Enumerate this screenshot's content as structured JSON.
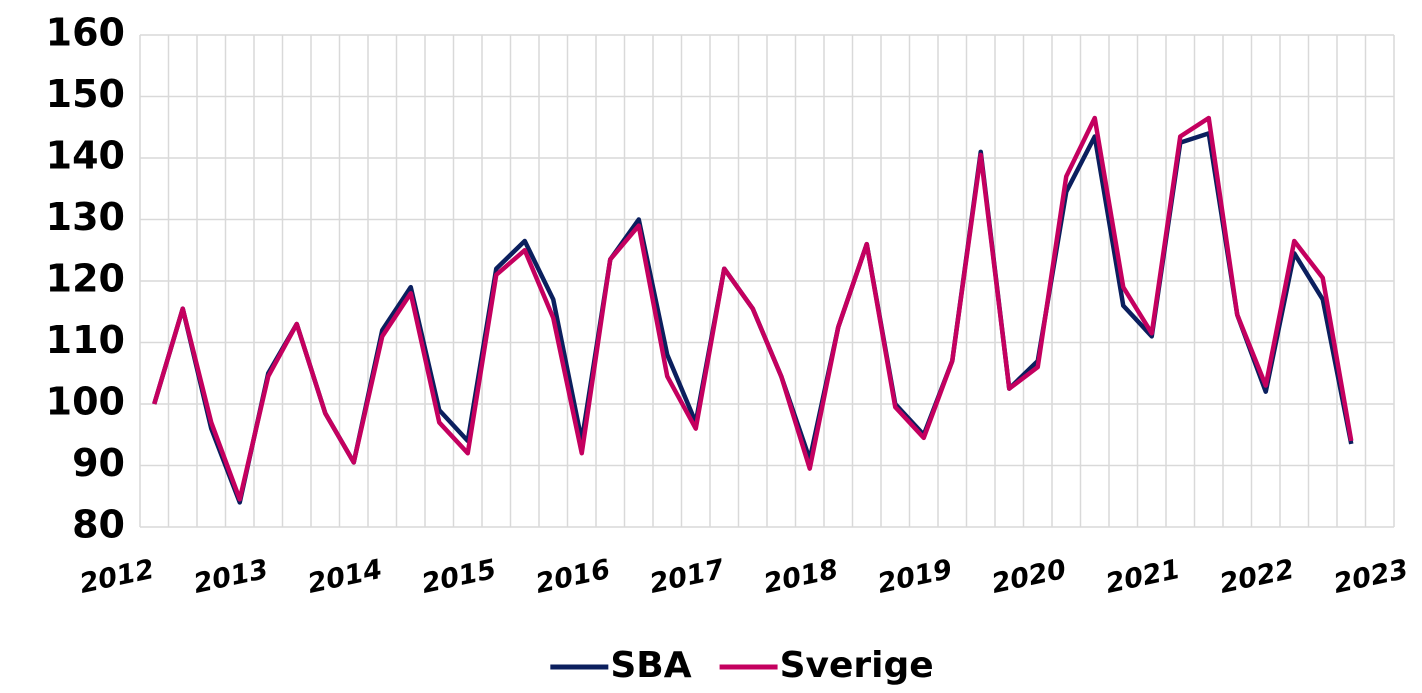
{
  "chart_data": {
    "type": "line",
    "x": [
      2012.125,
      2012.375,
      2012.625,
      2012.875,
      2013.125,
      2013.375,
      2013.625,
      2013.875,
      2014.125,
      2014.375,
      2014.625,
      2014.875,
      2015.125,
      2015.375,
      2015.625,
      2015.875,
      2016.125,
      2016.375,
      2016.625,
      2016.875,
      2017.125,
      2017.375,
      2017.625,
      2017.875,
      2018.125,
      2018.375,
      2018.625,
      2018.875,
      2019.125,
      2019.375,
      2019.625,
      2019.875,
      2020.125,
      2020.375,
      2020.625,
      2020.875,
      2021.125,
      2021.375,
      2021.625,
      2021.875,
      2022.125,
      2022.375,
      2022.625
    ],
    "series": [
      {
        "name": "SBA",
        "color": "#0b1f5e",
        "values": [
          100,
          115.5,
          96,
          84,
          105,
          113,
          98.5,
          90.5,
          112,
          119,
          99,
          94,
          122,
          126.5,
          117,
          94,
          123.5,
          130,
          108,
          97,
          122,
          115.5,
          104.5,
          91,
          112.5,
          126,
          100,
          95,
          107,
          141,
          102.5,
          107,
          134.5,
          143.5,
          116,
          111,
          142.5,
          144,
          114.5,
          102,
          124.5,
          117,
          93.5
        ]
      },
      {
        "name": "Sverige",
        "color": "#c4005f",
        "values": [
          100,
          115.5,
          97,
          84.5,
          104.5,
          113,
          98.5,
          90.5,
          111,
          118,
          97,
          92,
          121,
          125,
          114,
          92,
          123.5,
          129,
          104.5,
          96,
          122,
          115.5,
          104.5,
          89.5,
          112.5,
          126,
          99.5,
          94.5,
          107,
          140.5,
          102.5,
          106,
          137,
          146.5,
          119,
          111.5,
          143.5,
          146.5,
          114.5,
          103,
          126.5,
          120.5,
          94
        ]
      }
    ],
    "xlim": [
      2012,
      2023
    ],
    "xticks": [
      2012,
      2013,
      2014,
      2015,
      2016,
      2017,
      2018,
      2019,
      2020,
      2021,
      2022,
      2023
    ],
    "ylim": [
      80,
      160
    ],
    "yticks": [
      80,
      90,
      100,
      110,
      120,
      130,
      140,
      150,
      160
    ],
    "grid": true,
    "legend": "bottom"
  }
}
